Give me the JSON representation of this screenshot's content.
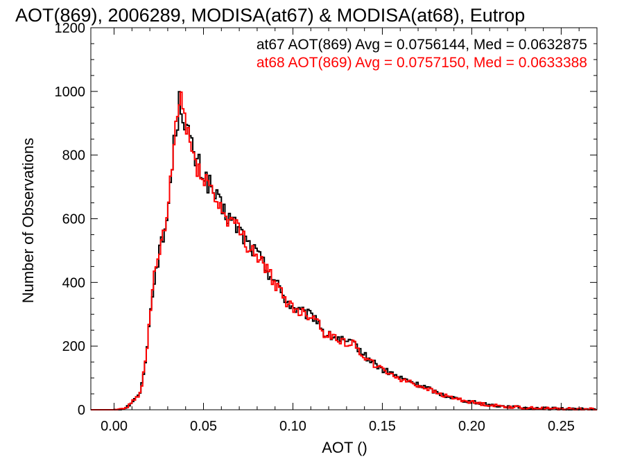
{
  "chart_data": {
    "type": "histogram",
    "title": "AOT(869), 2006289, MODISA(at67) & MODISA(at68), Eutrop",
    "xlabel": "AOT ()",
    "ylabel": "Number of Observations",
    "xlim": [
      -0.013,
      0.27
    ],
    "ylim": [
      0,
      1200
    ],
    "x_ticks": [
      0.0,
      0.05,
      0.1,
      0.15,
      0.2,
      0.25
    ],
    "x_tick_labels": [
      "0.00",
      "0.05",
      "0.10",
      "0.15",
      "0.20",
      "0.25"
    ],
    "y_ticks": [
      0,
      200,
      400,
      600,
      800,
      1000,
      1200
    ],
    "y_tick_labels": [
      "0",
      "200",
      "400",
      "600",
      "800",
      "1000",
      "1200"
    ],
    "bin_width": 0.001,
    "grid": false,
    "legend_placement": "top-right",
    "series": [
      {
        "name": "at67",
        "label": "at67 AOT(869) Avg = 0.0756144, Med = 0.0632875",
        "color": "#000000",
        "points": [
          [
            -0.013,
            0
          ],
          [
            0.0,
            0
          ],
          [
            0.005,
            3
          ],
          [
            0.008,
            12
          ],
          [
            0.01,
            25
          ],
          [
            0.012,
            35
          ],
          [
            0.014,
            45
          ],
          [
            0.016,
            90
          ],
          [
            0.018,
            180
          ],
          [
            0.02,
            280
          ],
          [
            0.022,
            400
          ],
          [
            0.024,
            460
          ],
          [
            0.026,
            510
          ],
          [
            0.028,
            545
          ],
          [
            0.03,
            620
          ],
          [
            0.032,
            740
          ],
          [
            0.034,
            860
          ],
          [
            0.036,
            940
          ],
          [
            0.037,
            975
          ],
          [
            0.039,
            930
          ],
          [
            0.041,
            880
          ],
          [
            0.043,
            830
          ],
          [
            0.045,
            790
          ],
          [
            0.05,
            740
          ],
          [
            0.055,
            690
          ],
          [
            0.06,
            630
          ],
          [
            0.065,
            600
          ],
          [
            0.07,
            565
          ],
          [
            0.075,
            520
          ],
          [
            0.08,
            490
          ],
          [
            0.085,
            445
          ],
          [
            0.09,
            405
          ],
          [
            0.095,
            355
          ],
          [
            0.1,
            320
          ],
          [
            0.105,
            305
          ],
          [
            0.11,
            295
          ],
          [
            0.113,
            290
          ],
          [
            0.118,
            235
          ],
          [
            0.125,
            225
          ],
          [
            0.13,
            210
          ],
          [
            0.135,
            205
          ],
          [
            0.14,
            170
          ],
          [
            0.145,
            150
          ],
          [
            0.15,
            125
          ],
          [
            0.155,
            115
          ],
          [
            0.16,
            100
          ],
          [
            0.165,
            90
          ],
          [
            0.17,
            78
          ],
          [
            0.175,
            70
          ],
          [
            0.18,
            55
          ],
          [
            0.185,
            45
          ],
          [
            0.19,
            38
          ],
          [
            0.195,
            30
          ],
          [
            0.2,
            25
          ],
          [
            0.205,
            20
          ],
          [
            0.21,
            16
          ],
          [
            0.215,
            12
          ],
          [
            0.22,
            10
          ],
          [
            0.225,
            8
          ],
          [
            0.23,
            6
          ],
          [
            0.235,
            5
          ],
          [
            0.24,
            4
          ],
          [
            0.25,
            3
          ],
          [
            0.26,
            2
          ],
          [
            0.27,
            1
          ]
        ]
      },
      {
        "name": "at68",
        "label": "at68 AOT(869) Avg = 0.0757150, Med = 0.0633388",
        "color": "#ff0000",
        "points": [
          [
            -0.013,
            0
          ],
          [
            0.0,
            0
          ],
          [
            0.005,
            3
          ],
          [
            0.008,
            12
          ],
          [
            0.01,
            25
          ],
          [
            0.012,
            35
          ],
          [
            0.014,
            45
          ],
          [
            0.016,
            90
          ],
          [
            0.018,
            180
          ],
          [
            0.02,
            280
          ],
          [
            0.022,
            400
          ],
          [
            0.024,
            460
          ],
          [
            0.026,
            510
          ],
          [
            0.028,
            545
          ],
          [
            0.03,
            620
          ],
          [
            0.032,
            740
          ],
          [
            0.034,
            860
          ],
          [
            0.036,
            945
          ],
          [
            0.037,
            985
          ],
          [
            0.039,
            935
          ],
          [
            0.041,
            880
          ],
          [
            0.043,
            825
          ],
          [
            0.045,
            785
          ],
          [
            0.05,
            735
          ],
          [
            0.055,
            685
          ],
          [
            0.06,
            625
          ],
          [
            0.065,
            595
          ],
          [
            0.07,
            560
          ],
          [
            0.075,
            515
          ],
          [
            0.08,
            485
          ],
          [
            0.085,
            440
          ],
          [
            0.09,
            400
          ],
          [
            0.095,
            350
          ],
          [
            0.1,
            320
          ],
          [
            0.105,
            305
          ],
          [
            0.11,
            295
          ],
          [
            0.113,
            290
          ],
          [
            0.118,
            235
          ],
          [
            0.125,
            225
          ],
          [
            0.13,
            210
          ],
          [
            0.135,
            205
          ],
          [
            0.14,
            165
          ],
          [
            0.145,
            145
          ],
          [
            0.15,
            125
          ],
          [
            0.155,
            112
          ],
          [
            0.16,
            98
          ],
          [
            0.165,
            88
          ],
          [
            0.17,
            76
          ],
          [
            0.175,
            68
          ],
          [
            0.18,
            53
          ],
          [
            0.185,
            44
          ],
          [
            0.19,
            37
          ],
          [
            0.195,
            30
          ],
          [
            0.2,
            24
          ],
          [
            0.205,
            19
          ],
          [
            0.21,
            15
          ],
          [
            0.215,
            12
          ],
          [
            0.22,
            10
          ],
          [
            0.225,
            8
          ],
          [
            0.23,
            6
          ],
          [
            0.235,
            5
          ],
          [
            0.24,
            4
          ],
          [
            0.25,
            3
          ],
          [
            0.26,
            2
          ],
          [
            0.27,
            1
          ]
        ]
      }
    ]
  }
}
